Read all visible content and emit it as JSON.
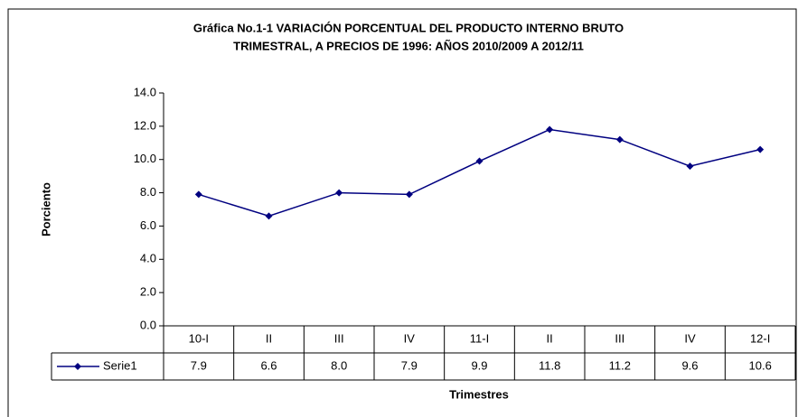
{
  "chart_data": {
    "type": "line",
    "title": [
      "Gráfica No.1-1  VARIACIÓN PORCENTUAL DEL PRODUCTO INTERNO BRUTO",
      "TRIMESTRAL, A PRECIOS DE 1996:  AÑOS 2010/2009 A 2012/11"
    ],
    "y_label": "Porciento",
    "x_label": "Trimestres",
    "categories": [
      "10-I",
      "II",
      "III",
      "IV",
      "11-I",
      "II",
      "III",
      "IV",
      "12-I"
    ],
    "series": [
      {
        "name": "Serie1",
        "color": "#000080",
        "values": [
          7.9,
          6.6,
          8.0,
          7.9,
          9.9,
          11.8,
          11.2,
          9.6,
          10.6
        ],
        "value_labels": [
          "7.9",
          "6.6",
          "8.0",
          "7.9",
          "9.9",
          "11.8",
          "11.2",
          "9.6",
          "10.6"
        ]
      }
    ],
    "ylim": [
      0,
      14
    ],
    "yticks": [
      {
        "value": 0,
        "label": "0.0"
      },
      {
        "value": 2,
        "label": "2.0"
      },
      {
        "value": 4,
        "label": "4.0"
      },
      {
        "value": 6,
        "label": "6.0"
      },
      {
        "value": 8,
        "label": "8.0"
      },
      {
        "value": 10,
        "label": "10.0"
      },
      {
        "value": 12,
        "label": "12.0"
      },
      {
        "value": 14,
        "label": "14.0"
      }
    ],
    "grid": false,
    "data_table": true
  }
}
